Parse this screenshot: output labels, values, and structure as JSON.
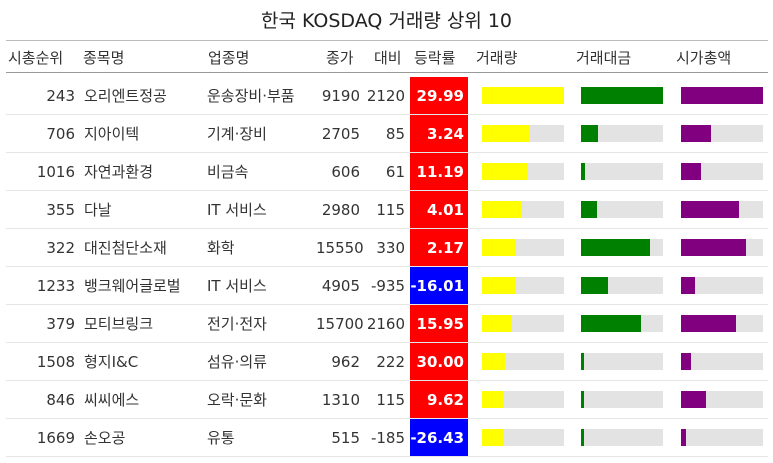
{
  "chart_data": {
    "type": "table",
    "title": "한국 KOSDAQ 거래량 상위 10",
    "columns": [
      "시총순위",
      "종목명",
      "업종명",
      "종가",
      "대비",
      "등락률",
      "거래량",
      "거래대금",
      "시가총액"
    ],
    "colors": {
      "up": "#ff0000",
      "down": "#0000ff",
      "volume": "#ffff00",
      "amount": "#008000",
      "cap": "#800080",
      "track": "#e3e3e3"
    },
    "rows": [
      {
        "rank": "243",
        "name": "오리엔트정공",
        "sector": "운송장비·부품",
        "close": "9190",
        "change": "2120",
        "rate": "29.99",
        "dir": "up",
        "volume": 1.0,
        "amount": 1.0,
        "cap": 1.0
      },
      {
        "rank": "706",
        "name": "지아이텍",
        "sector": "기계·장비",
        "close": "2705",
        "change": "85",
        "rate": "3.24",
        "dir": "up",
        "volume": 0.59,
        "amount": 0.21,
        "cap": 0.37
      },
      {
        "rank": "1016",
        "name": "자연과환경",
        "sector": "비금속",
        "close": "606",
        "change": "61",
        "rate": "11.19",
        "dir": "up",
        "volume": 0.56,
        "amount": 0.05,
        "cap": 0.24
      },
      {
        "rank": "355",
        "name": "다날",
        "sector": "IT 서비스",
        "close": "2980",
        "change": "115",
        "rate": "4.01",
        "dir": "up",
        "volume": 0.49,
        "amount": 0.19,
        "cap": 0.71
      },
      {
        "rank": "322",
        "name": "대진첨단소재",
        "sector": "화학",
        "close": "15550",
        "change": "330",
        "rate": "2.17",
        "dir": "up",
        "volume": 0.42,
        "amount": 0.84,
        "cap": 0.79
      },
      {
        "rank": "1233",
        "name": "뱅크웨어글로벌",
        "sector": "IT 서비스",
        "close": "4905",
        "change": "-935",
        "rate": "-16.01",
        "dir": "down",
        "volume": 0.4,
        "amount": 0.33,
        "cap": 0.17
      },
      {
        "rank": "379",
        "name": "모티브링크",
        "sector": "전기·전자",
        "close": "15700",
        "change": "2160",
        "rate": "15.95",
        "dir": "up",
        "volume": 0.37,
        "amount": 0.73,
        "cap": 0.67
      },
      {
        "rank": "1508",
        "name": "형지I&C",
        "sector": "섬유·의류",
        "close": "962",
        "change": "222",
        "rate": "30.00",
        "dir": "up",
        "volume": 0.28,
        "amount": 0.04,
        "cap": 0.12
      },
      {
        "rank": "846",
        "name": "씨씨에스",
        "sector": "오락·문화",
        "close": "1310",
        "change": "115",
        "rate": "9.62",
        "dir": "up",
        "volume": 0.26,
        "amount": 0.04,
        "cap": 0.3
      },
      {
        "rank": "1669",
        "name": "손오공",
        "sector": "유통",
        "close": "515",
        "change": "-185",
        "rate": "-26.43",
        "dir": "down",
        "volume": 0.26,
        "amount": 0.02,
        "cap": 0.06
      }
    ]
  }
}
